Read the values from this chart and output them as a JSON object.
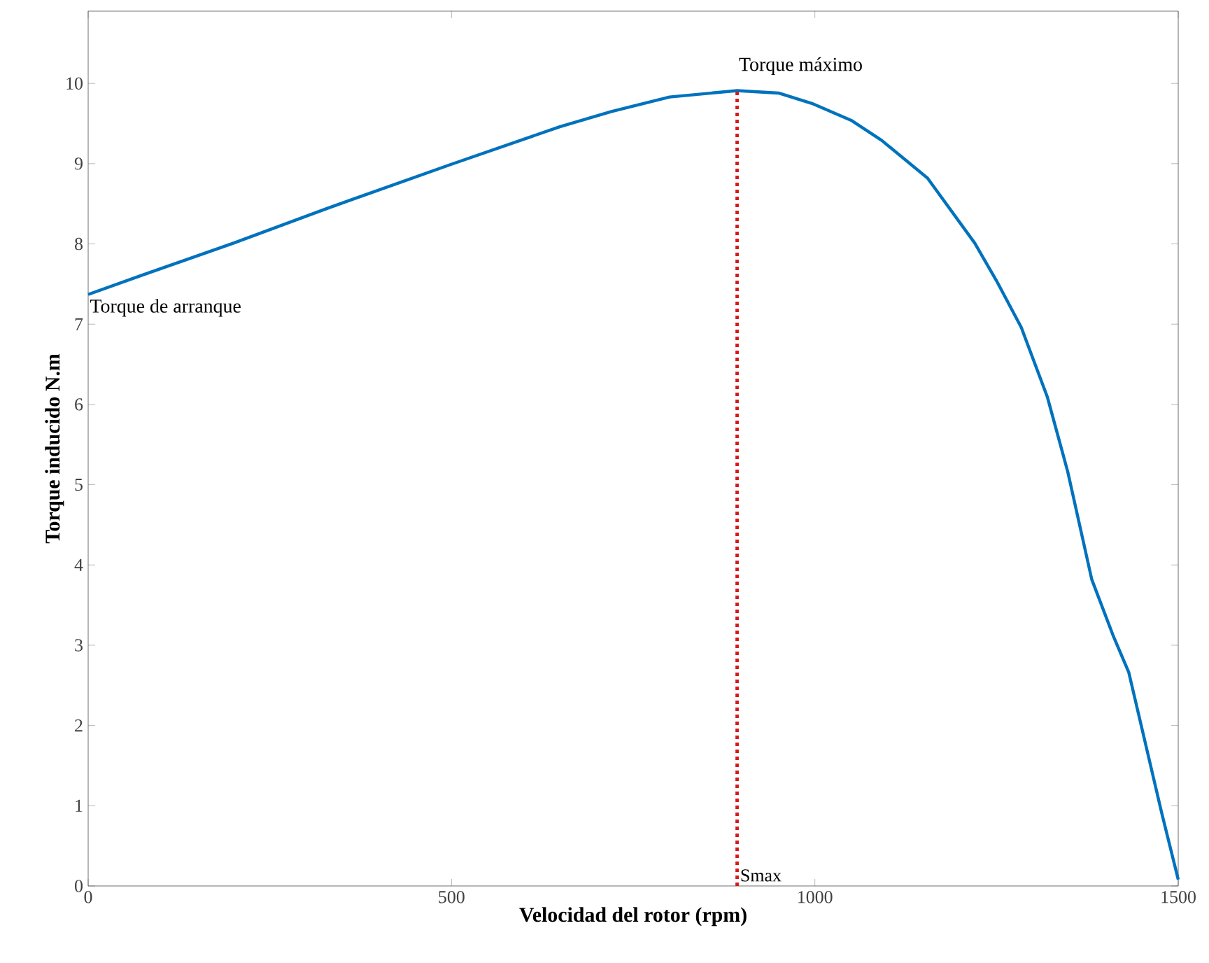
{
  "chart_data": {
    "type": "line",
    "xlabel": "Velocidad del rotor (rpm)",
    "ylabel": "Torque inducido N.m",
    "series": [
      {
        "color": "#0072bd",
        "x": [
          0,
          71,
          200,
          328,
          499,
          649,
          720,
          800,
          893,
          950,
          996,
          1050,
          1092,
          1155,
          1220,
          1250,
          1284,
          1320,
          1348,
          1381,
          1410,
          1432,
          1477,
          1500
        ],
        "values": [
          7.37,
          7.6,
          8.01,
          8.44,
          8.99,
          9.46,
          9.65,
          9.83,
          9.91,
          9.88,
          9.75,
          9.54,
          9.29,
          8.82,
          8.01,
          7.54,
          6.96,
          6.09,
          5.16,
          3.82,
          3.13,
          2.66,
          0.92,
          0.08
        ]
      }
    ],
    "xlim": [
      0,
      1500
    ],
    "xticks": [
      0,
      500,
      1000,
      1500
    ],
    "ylim": [
      0,
      10.9
    ],
    "yticks": [
      0,
      1,
      2,
      3,
      4,
      5,
      6,
      7,
      8,
      9,
      10
    ],
    "ref_lines": [
      {
        "axis": "x",
        "value": 893,
        "label": "Smax",
        "color": "#d7191c",
        "line_style": "dotted"
      }
    ],
    "annotations": [
      {
        "text": "Torque de arranque",
        "x": 0,
        "y": 7.37
      },
      {
        "text": "Torque máximo",
        "x": 893,
        "y": 9.91
      }
    ],
    "marker": "none"
  }
}
